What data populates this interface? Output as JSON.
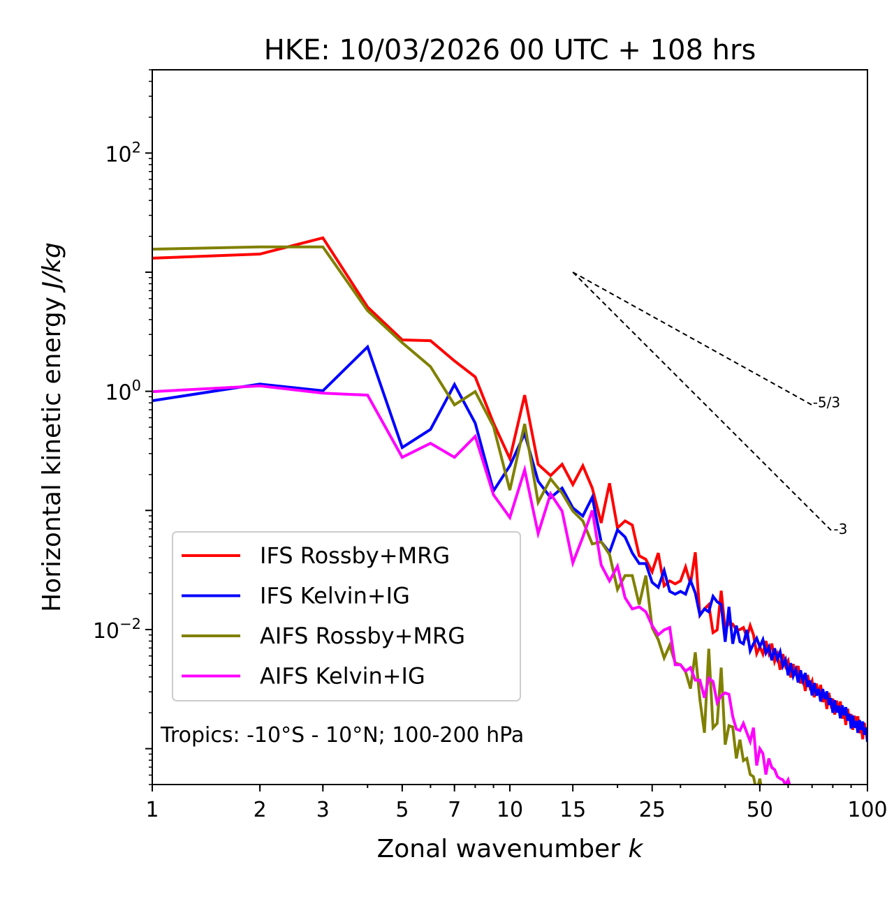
{
  "chart_data": {
    "type": "line",
    "title": "HKE: 10/03/2026 00 UTC + 108 hrs",
    "xlabel": "Zonal wavenumber",
    "xlabel_italic": "k",
    "ylabel": "Horizontal kinetic energy",
    "ylabel_italic": "J/kg",
    "xscale": "log",
    "yscale": "log",
    "xlim": [
      1,
      100
    ],
    "ylim": [
      0.0005,
      500
    ],
    "x_ticks": [
      {
        "value": 1,
        "label": "1"
      },
      {
        "value": 2,
        "label": "2"
      },
      {
        "value": 3,
        "label": "3"
      },
      {
        "value": 5,
        "label": "5"
      },
      {
        "value": 7,
        "label": "7"
      },
      {
        "value": 10,
        "label": "10"
      },
      {
        "value": 15,
        "label": "15"
      },
      {
        "value": 25,
        "label": "25"
      },
      {
        "value": 50,
        "label": "50"
      },
      {
        "value": 100,
        "label": "100"
      }
    ],
    "y_ticks": [
      {
        "value": 100,
        "base": "10",
        "exp": "2"
      },
      {
        "value": 1,
        "base": "10",
        "exp": "0"
      },
      {
        "value": 0.01,
        "base": "10",
        "exp": "−2"
      }
    ],
    "grid": false,
    "legend_position": "lower-left",
    "annotation": "Tropics: -10°S - 10°N; 100-200 hPa",
    "reference_lines": [
      {
        "label": "-5/3",
        "slope": -1.6667,
        "x_start": 15,
        "y_start": 10,
        "x_end": 70,
        "style": "dashed",
        "color": "#000000"
      },
      {
        "label": "-3",
        "slope": -3,
        "x_start": 15,
        "y_start": 10,
        "x_end": 80,
        "style": "dashed",
        "color": "#000000"
      }
    ],
    "series": [
      {
        "name": "IFS Rossby+MRG",
        "color": "#ff0000",
        "x_start": 1,
        "values": [
          13.1,
          14.2,
          19.4,
          5.09,
          2.7,
          2.66,
          1.8,
          1.32,
          0.541,
          0.272,
          0.929,
          0.244,
          0.196,
          0.244,
          0.165,
          0.237,
          0.154,
          0.0784,
          0.169,
          0.0713,
          0.0817,
          0.0753,
          0.0416,
          0.0389,
          0.0305,
          0.0439,
          0.0233,
          0.0256,
          0.0242,
          0.0256,
          0.0335,
          0.0242,
          0.0445,
          0.0132,
          0.0149,
          0.0162,
          0.00942,
          0.00993,
          0.0212,
          0.00993,
          0.0114,
          0.0111,
          0.00993,
          0.01,
          0.0104,
          0.00867,
          0.0108,
          0.00903,
          0.00628,
          0.00718,
          0.00624,
          0.00802,
          0.00635,
          0.00762,
          0.0054,
          0.00619,
          0.0046,
          0.00622,
          0.00495,
          0.00545,
          0.00396,
          0.00513,
          0.0041,
          0.00495,
          0.00353,
          0.00409,
          0.00305,
          0.00416,
          0.00333,
          0.00369,
          0.0027,
          0.00352,
          0.00282,
          0.00344,
          0.00246,
          0.00286,
          0.00215,
          0.00294,
          0.00237,
          0.00263,
          0.00193,
          0.00253,
          0.00204,
          0.00249,
          0.00179,
          0.00209,
          0.00158,
          0.00216,
          0.00175,
          0.00195,
          0.00144,
          0.00189,
          0.00153,
          0.00187,
          0.00135,
          0.00158,
          0.0012,
          0.00165,
          0.00133,
          0.0015
        ]
      },
      {
        "name": "IFS Kelvin+IG",
        "color": "#0000ff",
        "x_start": 1,
        "values": [
          0.834,
          1.15,
          1.01,
          2.36,
          0.337,
          0.479,
          1.14,
          0.541,
          0.146,
          0.237,
          0.442,
          0.176,
          0.128,
          0.154,
          0.105,
          0.0897,
          0.129,
          0.0545,
          0.0445,
          0.0686,
          0.0598,
          0.0439,
          0.0358,
          0.0358,
          0.0249,
          0.0226,
          0.0313,
          0.0209,
          0.0198,
          0.0209,
          0.0198,
          0.0259,
          0.0203,
          0.0132,
          0.0149,
          0.0141,
          0.019,
          0.0171,
          0.0162,
          0.00789,
          0.0155,
          0.00759,
          0.0108,
          0.00789,
          0.00759,
          0.00993,
          0.00662,
          0.00759,
          0.00845,
          0.00718,
          0.00822,
          0.00637,
          0.00713,
          0.00552,
          0.00695,
          0.00565,
          0.0065,
          0.00494,
          0.00556,
          0.00413,
          0.00522,
          0.00407,
          0.0046,
          0.00359,
          0.00455,
          0.00373,
          0.00432,
          0.0033,
          0.00374,
          0.0028,
          0.00356,
          0.00279,
          0.00317,
          0.00249,
          0.00317,
          0.00261,
          0.00303,
          0.00233,
          0.00265,
          0.002,
          0.00255,
          0.00201,
          0.00229,
          0.0018,
          0.00231,
          0.00191,
          0.00223,
          0.00172,
          0.00196,
          0.00148,
          0.0019,
          0.0015,
          0.00171,
          0.00136,
          0.00174,
          0.00144,
          0.00169,
          0.00131,
          0.0015,
          0.00114
        ]
      },
      {
        "name": "AIFS Rossby+MRG",
        "color": "#808000",
        "x_start": 1,
        "values": [
          15.6,
          16.3,
          16.3,
          4.75,
          2.56,
          1.61,
          0.769,
          0.993,
          0.506,
          0.148,
          0.533,
          0.117,
          0.184,
          0.14,
          0.0986,
          0.0817,
          0.0523,
          0.0545,
          0.0427,
          0.0217,
          0.0284,
          0.0284,
          0.0162,
          0.0284,
          0.0104,
          0.00822,
          0.00578,
          0.00738,
          0.00526,
          0.00506,
          0.00442,
          0.00319,
          0.00644,
          0.00258,
          0.00136,
          0.0069,
          0.0015,
          0.00163,
          0.00479,
          0.00108,
          0.00156,
          0.00152,
          0.000828,
          0.00119,
          0.000794,
          0.000828,
          0.000607,
          0.000582,
          0.000433,
          0.00056,
          0.0004,
          0.00048,
          0.00035,
          0.00042,
          0.0003
        ]
      },
      {
        "name": "AIFS Kelvin+IG",
        "color": "#ff00ff",
        "x_start": 1,
        "values": [
          0.993,
          1.11,
          0.966,
          0.929,
          0.279,
          0.366,
          0.279,
          0.419,
          0.135,
          0.0873,
          0.219,
          0.064,
          0.138,
          0.0986,
          0.0363,
          0.0598,
          0.1,
          0.0349,
          0.0256,
          0.034,
          0.0185,
          0.0149,
          0.0155,
          0.0141,
          0.0108,
          0.00903,
          0.00993,
          0.0104,
          0.00506,
          0.00506,
          0.00448,
          0.00479,
          0.00376,
          0.00376,
          0.00268,
          0.00391,
          0.00366,
          0.00244,
          0.00279,
          0.00294,
          0.00286,
          0.00186,
          0.00146,
          0.00142,
          0.00163,
          0.00136,
          0.00115,
          0.0015,
          0.000723,
          0.001,
          0.00091,
          0.000607,
          0.000828,
          0.000695,
          0.000667,
          0.000582,
          0.00056,
          0.000548,
          0.000499,
          0.000548,
          0.000465,
          0.000433
        ]
      }
    ]
  }
}
